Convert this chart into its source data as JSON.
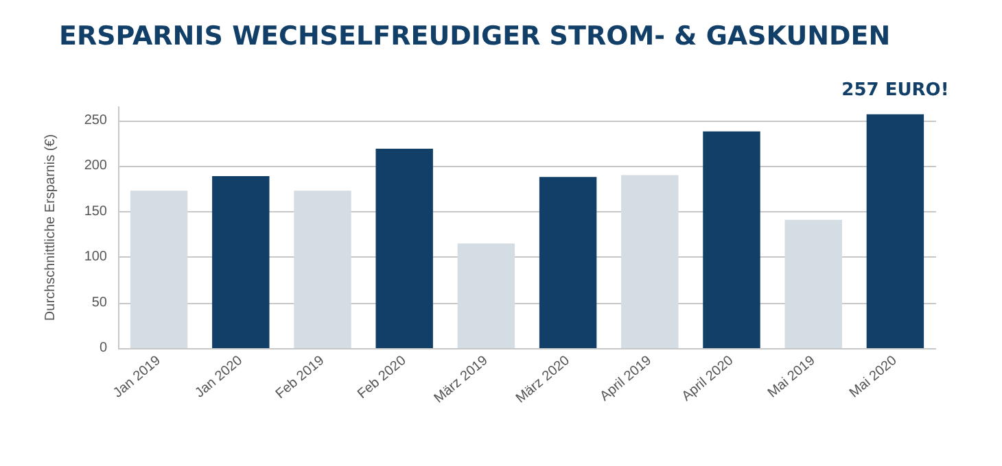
{
  "chart_data": {
    "type": "bar",
    "title": "ERSPARNIS WECHSELFREUDIGER STROM- & GASKUNDEN",
    "ylabel": "Durchschnittliche Ersparnis (€)",
    "categories": [
      "Jan 2019",
      "Jan 2020",
      "Feb 2019",
      "Feb 2020",
      "März 2019",
      "März 2020",
      "April 2019",
      "April 2020",
      "Mai 2019",
      "Mai 2020"
    ],
    "values": [
      173,
      189,
      173,
      219,
      115,
      188,
      190,
      238,
      141,
      257
    ],
    "colors": [
      "#d5dde4",
      "#113f67",
      "#d5dde4",
      "#113f67",
      "#d5dde4",
      "#113f67",
      "#d5dde4",
      "#113f67",
      "#d5dde4",
      "#113f67"
    ],
    "annotations": [
      {
        "text": "257 EURO!",
        "x": "Mai 2020",
        "y": 257
      }
    ],
    "ylim": [
      0,
      265
    ],
    "yticks": [
      0,
      50,
      100,
      150,
      200,
      250
    ],
    "grid": "y"
  }
}
